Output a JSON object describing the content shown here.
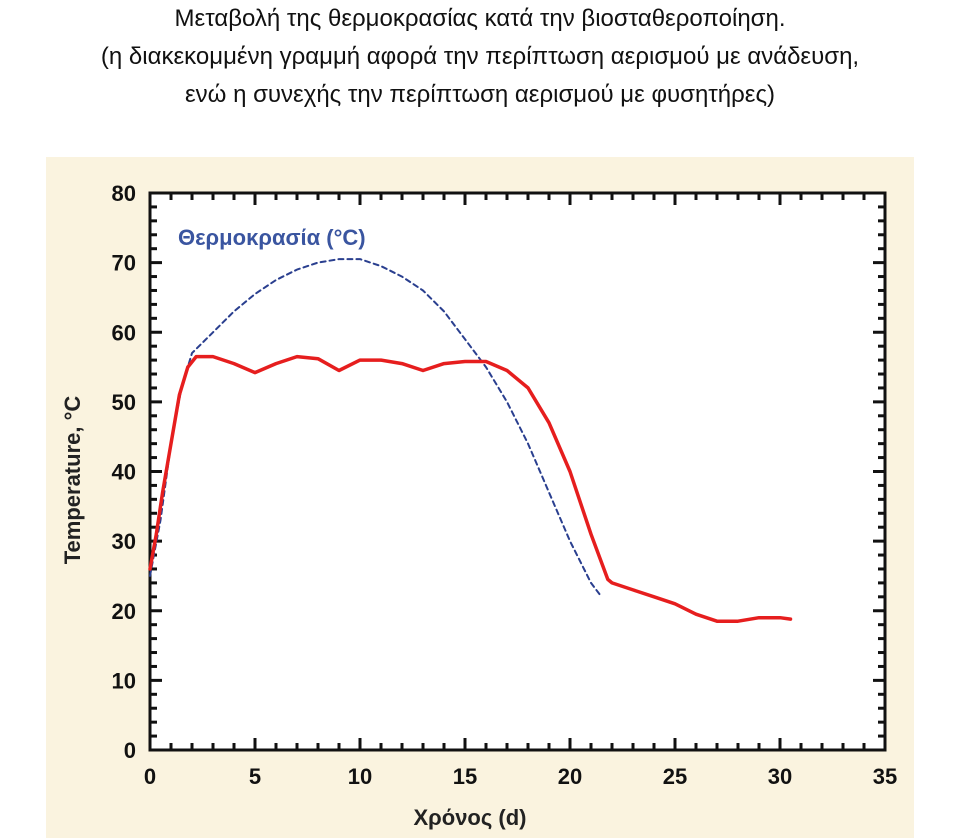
{
  "caption": {
    "line1": "Μεταβολή της θερμοκρασίας κατά την βιοσταθεροποίηση.",
    "line2": "(η διακεκομμένη γραμμή αφορά την περίπτωση αερισμού με ανάδευση,",
    "line3": "ενώ η συνεχής την περίπτωση αερισμού με φυσητήρες)"
  },
  "chart_data": {
    "type": "line",
    "xlabel": "Χρόνος (d)",
    "ylabel": "Temperature, °C",
    "xlim": [
      0,
      35
    ],
    "ylim": [
      0,
      80
    ],
    "xticks": [
      0,
      5,
      10,
      15,
      20,
      25,
      30,
      35
    ],
    "yticks": [
      0,
      10,
      20,
      30,
      40,
      50,
      60,
      70,
      80
    ],
    "legend_text": "Θερμοκρασία (°C)",
    "grid": false,
    "series": [
      {
        "style": "dashed",
        "color": "#2a3f8f",
        "x": [
          0,
          0.5,
          1,
          1.5,
          2,
          3,
          4,
          5,
          6,
          7,
          8,
          9,
          10,
          11,
          12,
          13,
          14,
          15,
          16,
          17,
          18,
          19,
          20,
          21,
          21.5
        ],
        "y": [
          25,
          33,
          44,
          52,
          57,
          60,
          63,
          65.5,
          67.5,
          69,
          70,
          70.5,
          70.5,
          69.5,
          68,
          66,
          63,
          59,
          55,
          50,
          44,
          37,
          30,
          24,
          22
        ]
      },
      {
        "style": "solid",
        "color": "#e61e1e",
        "x": [
          0,
          0.3,
          0.6,
          1,
          1.4,
          1.8,
          2.2,
          3,
          4,
          5,
          6,
          7,
          8,
          9,
          10,
          11,
          12,
          13,
          14,
          15,
          16,
          17,
          18,
          19,
          20,
          21,
          21.8,
          22,
          23,
          24,
          25,
          26,
          27,
          28,
          29,
          30,
          30.5
        ],
        "y": [
          26,
          31,
          37,
          44,
          51,
          55,
          56.5,
          56.5,
          55.5,
          54.2,
          55.5,
          56.5,
          56.2,
          54.5,
          56,
          56,
          55.5,
          54.5,
          55.5,
          55.8,
          55.8,
          54.5,
          52,
          47,
          40,
          31,
          24.5,
          24,
          23,
          22,
          21,
          19.5,
          18.5,
          18.5,
          19,
          19,
          18.8
        ]
      }
    ]
  }
}
